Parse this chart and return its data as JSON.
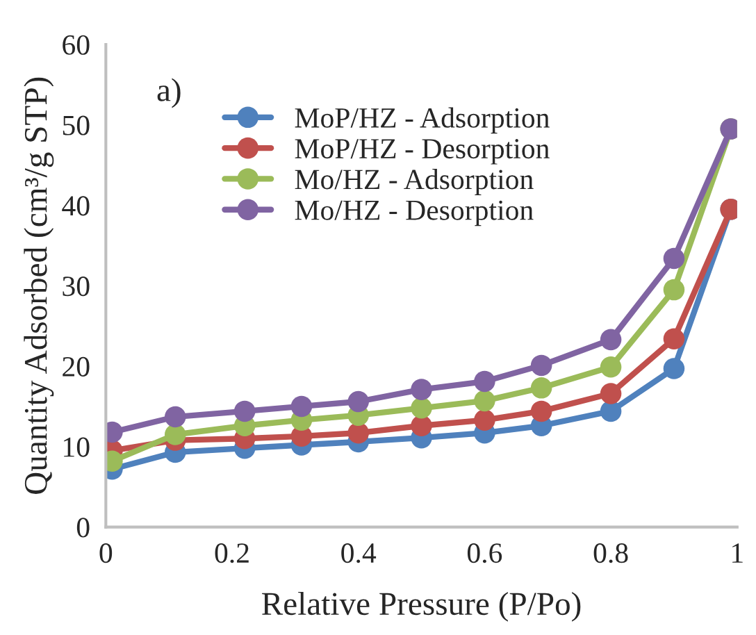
{
  "chart_data": {
    "type": "line",
    "xlabel": "Relative Pressure (P/Po)",
    "ylabel": "Quantity Adsorbed (cm³/g STP)",
    "annotations": [
      "a)"
    ],
    "x": [
      0.01,
      0.11,
      0.22,
      0.31,
      0.4,
      0.5,
      0.6,
      0.69,
      0.8,
      0.9,
      0.99
    ],
    "series": [
      {
        "name": "MoP/HZ - Adsorption",
        "color": "#4f81bd",
        "values": [
          7.2,
          9.3,
          9.8,
          10.2,
          10.6,
          11.1,
          11.7,
          12.6,
          14.4,
          19.7,
          39.5
        ]
      },
      {
        "name": "MoP/HZ - Desorption",
        "color": "#c0504d",
        "values": [
          9.5,
          10.8,
          11.0,
          11.3,
          11.7,
          12.6,
          13.3,
          14.4,
          16.6,
          23.4,
          39.5
        ]
      },
      {
        "name": "Mo/HZ - Adsorption",
        "color": "#9bbb59",
        "values": [
          8.2,
          11.5,
          12.6,
          13.3,
          13.9,
          14.8,
          15.7,
          17.3,
          19.9,
          29.5,
          49.5
        ]
      },
      {
        "name": "Mo/HZ - Desorption",
        "color": "#8064a2",
        "values": [
          11.8,
          13.7,
          14.4,
          15.0,
          15.6,
          17.1,
          18.1,
          20.1,
          23.3,
          33.4,
          49.5
        ]
      }
    ],
    "xlim": [
      0,
      1
    ],
    "xticks": [
      0,
      0.2,
      0.4,
      0.6,
      0.8,
      1
    ],
    "ylim": [
      0,
      60
    ],
    "yticks": [
      0,
      10,
      20,
      30,
      40,
      50,
      60
    ],
    "grid": false,
    "legend": "top left",
    "marker": "circle",
    "line_style": "solid"
  }
}
